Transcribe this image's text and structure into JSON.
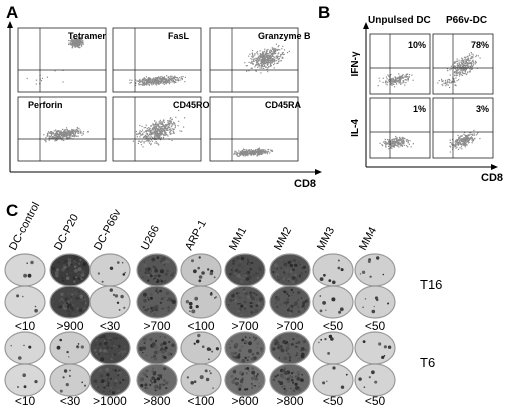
{
  "panel_a": {
    "letter": "A",
    "x_label": "CD8",
    "plots": [
      {
        "label": "Tetramer"
      },
      {
        "label": "FasL"
      },
      {
        "label": "Granzyme B"
      },
      {
        "label": "Perforin"
      },
      {
        "label": "CD45RO"
      },
      {
        "label": "CD45RA"
      }
    ]
  },
  "panel_b": {
    "letter": "B",
    "columns": [
      "Unpulsed DC",
      "P66v-DC"
    ],
    "rows": [
      "IFN-γ",
      "IL-4"
    ],
    "x_label": "CD8",
    "percentages": [
      [
        "10%",
        "78%"
      ],
      [
        "1%",
        "3%"
      ]
    ]
  },
  "panel_c": {
    "letter": "C",
    "column_labels": [
      "DC-control",
      "DC-P20",
      "DC-P66v",
      "U266",
      "ARP-1",
      "MM1",
      "MM2",
      "MM3",
      "MM4"
    ],
    "groups": [
      {
        "label": "T16",
        "values": [
          "<10",
          ">900",
          "<30",
          ">700",
          "<100",
          ">700",
          ">700",
          "<50",
          "<50"
        ],
        "intensity": [
          0.06,
          0.92,
          0.1,
          0.78,
          0.16,
          0.82,
          0.8,
          0.1,
          0.1
        ]
      },
      {
        "label": "T6",
        "values": [
          "<10",
          "<30",
          ">1000",
          ">800",
          "<100",
          ">600",
          ">800",
          "<50",
          "<50"
        ],
        "intensity": [
          0.06,
          0.12,
          0.86,
          0.7,
          0.14,
          0.66,
          0.72,
          0.08,
          0.08
        ]
      }
    ]
  }
}
